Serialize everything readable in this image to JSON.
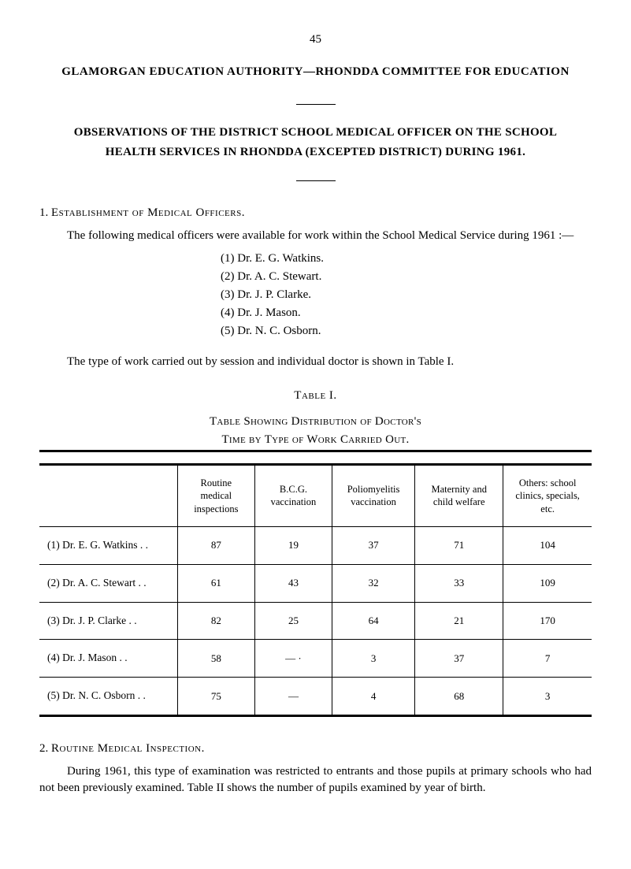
{
  "page_number": "45",
  "main_heading": "GLAMORGAN EDUCATION AUTHORITY—RHONDDA COMMITTEE FOR EDUCATION",
  "sub_heading_line1": "OBSERVATIONS OF THE DISTRICT SCHOOL MEDICAL OFFICER ON THE SCHOOL",
  "sub_heading_line2": "HEALTH SERVICES IN RHONDDA (EXCEPTED DISTRICT) DURING 1961.",
  "section1": {
    "number": "1.",
    "title": "Establishment of Medical Officers.",
    "para": "The following medical officers were available for work within the School Medical Service during 1961 :—",
    "officers": [
      "(1) Dr. E. G. Watkins.",
      "(2) Dr. A. C. Stewart.",
      "(3) Dr. J. P. Clarke.",
      "(4) Dr. J. Mason.",
      "(5) Dr. N. C. Osborn."
    ],
    "closing_para": "The type of work carried out by session and individual doctor is shown in Table I."
  },
  "table1": {
    "caption": "Table I.",
    "subcaption_line1": "Table Showing Distribution of Doctor's",
    "subcaption_line2": "Time by Type of Work Carried Out.",
    "columns": [
      "",
      "Routine medical inspections",
      "B.C.G. vaccination",
      "Poliomyelitis vaccination",
      "Maternity and child welfare",
      "Others: school clinics, specials, etc."
    ],
    "rows": [
      {
        "label": "(1) Dr. E. G. Watkins  . .",
        "cells": [
          "87",
          "19",
          "37",
          "71",
          "104"
        ]
      },
      {
        "label": "(2) Dr. A. C. Stewart   . .",
        "cells": [
          "61",
          "43",
          "32",
          "33",
          "109"
        ]
      },
      {
        "label": "(3) Dr. J. P. Clarke     . .",
        "cells": [
          "82",
          "25",
          "64",
          "21",
          "170"
        ]
      },
      {
        "label": "(4) Dr. J. Mason          . .",
        "cells": [
          "58",
          "—  ·",
          "3",
          "37",
          "7"
        ]
      },
      {
        "label": "(5) Dr. N. C. Osborn    . .",
        "cells": [
          "75",
          "—",
          "4",
          "68",
          "3"
        ]
      }
    ],
    "col_widths": [
      "25%",
      "14%",
      "14%",
      "15%",
      "16%",
      "16%"
    ]
  },
  "section2": {
    "number": "2.",
    "title": "Routine Medical Inspection.",
    "para": "During 1961, this type of examination was restricted to entrants and those pupils at primary schools who had not been previously examined.  Table II shows the number of pupils examined by year of birth."
  }
}
